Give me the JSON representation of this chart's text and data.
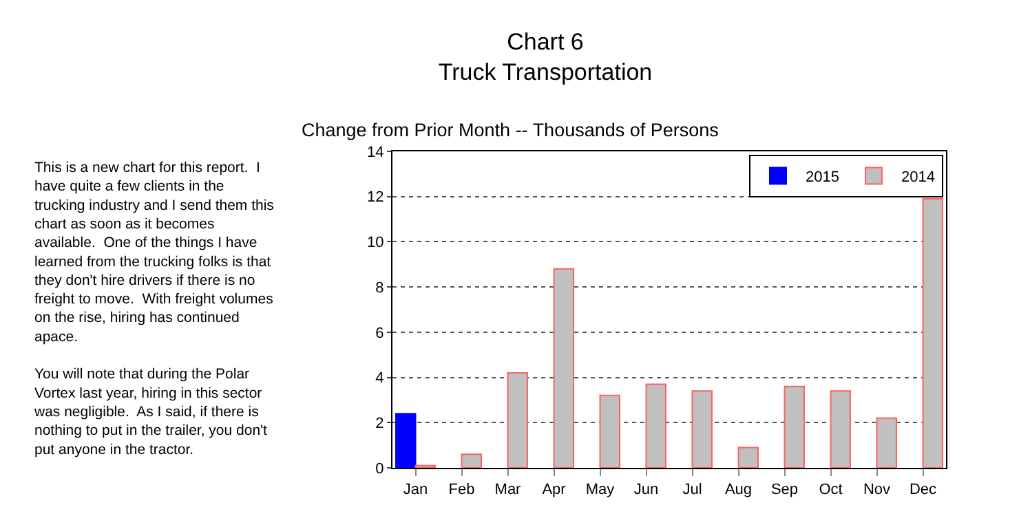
{
  "chart_data": {
    "type": "bar",
    "title": "Chart 6\nTruck Transportation",
    "subtitle": "Change from Prior Month -- Thousands of Persons",
    "categories": [
      "Jan",
      "Feb",
      "Mar",
      "Apr",
      "May",
      "Jun",
      "Jul",
      "Aug",
      "Sep",
      "Oct",
      "Nov",
      "Dec"
    ],
    "series": [
      {
        "name": "2015",
        "color": "#0000ff",
        "values": [
          2.4,
          null,
          null,
          null,
          null,
          null,
          null,
          null,
          null,
          null,
          null,
          null
        ]
      },
      {
        "name": "2014",
        "color": "#c0c0c0",
        "values": [
          0.1,
          0.6,
          4.2,
          8.8,
          3.2,
          3.7,
          3.4,
          0.9,
          3.6,
          3.4,
          2.2,
          11.9
        ]
      }
    ],
    "ylim": [
      0,
      14
    ],
    "yticks": [
      0,
      2,
      4,
      6,
      8,
      10,
      12,
      14
    ],
    "grid": "y",
    "legend": "top right",
    "annotations": [
      "This is a new chart for this report.  I\nhave quite a few clients in the\ntrucking industry and I send them this\nchart as soon as it becomes\navailable.  One of the things I have\nlearned from the trucking folks is that\nthey don't hire drivers if there is no\nfreight to move.  With freight volumes\non the rise, hiring has continued\napace.\n\nYou will note that during the Polar\nVortex last year, hiring in this sector\nwas negligible.  As I said, if there is\nnothing to put in the trailer, you don't\nput anyone in the tractor."
    ]
  }
}
